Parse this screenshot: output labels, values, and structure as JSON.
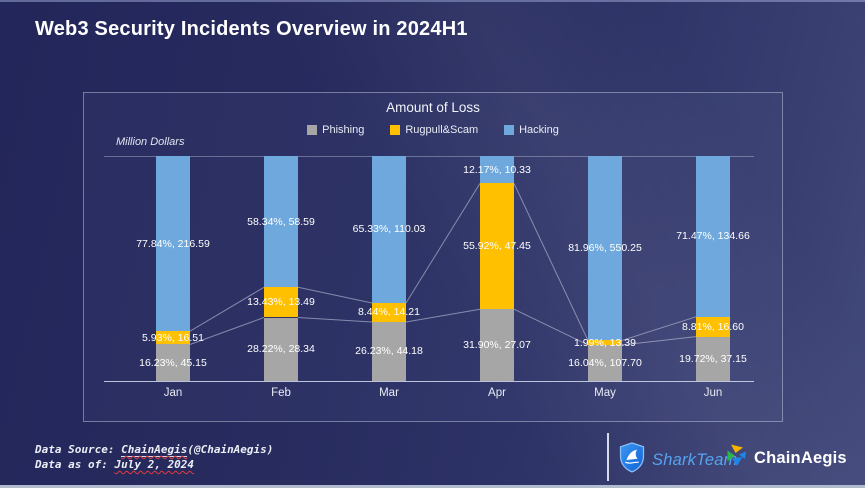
{
  "header": {
    "title": "Web3 Security Incidents Overview in 2024H1"
  },
  "chart_data": {
    "type": "bar",
    "subtype": "100%-stacked-column-with-series-lines",
    "title": "Amount of Loss",
    "ylabel": "Million Dollars",
    "categories": [
      "Jan",
      "Feb",
      "Mar",
      "Apr",
      "May",
      "Jun"
    ],
    "legend_position": "top",
    "grid": "top-line-only",
    "series": [
      {
        "name": "Phishing",
        "color": "#a6a6a6",
        "pct": [
          16.23,
          28.22,
          26.23,
          31.9,
          16.04,
          19.72
        ],
        "values": [
          45.15,
          28.34,
          44.18,
          27.07,
          107.7,
          37.15
        ]
      },
      {
        "name": "Rugpull&Scam",
        "color": "#ffc000",
        "pct": [
          5.93,
          13.43,
          8.44,
          55.92,
          1.99,
          8.81
        ],
        "values": [
          16.51,
          13.49,
          14.21,
          47.45,
          13.39,
          16.6
        ]
      },
      {
        "name": "Hacking",
        "color": "#6fa8dc",
        "pct": [
          77.84,
          58.34,
          65.33,
          12.17,
          81.96,
          71.47
        ],
        "values": [
          216.59,
          58.59,
          110.03,
          10.33,
          550.25,
          134.66
        ]
      }
    ],
    "label_format": "{pct}%, {value}"
  },
  "footer": {
    "source_prefix": "Data Source: ",
    "source_link": "ChainAegis",
    "source_suffix": "(@ChainAegis)",
    "asof_prefix": "Data as of: ",
    "asof_date": "July 2, 2024"
  },
  "logos": {
    "sharkteam_label": "SharkTeam",
    "chainaegis_label": "ChainAegis"
  },
  "colors": {
    "background_navy": "#272b5e",
    "phishing_gray": "#a6a6a6",
    "rugpull_yellow": "#ffc000",
    "hacking_blue": "#6fa8dc",
    "sharkteam_blue": "#55a4f1",
    "connector_line": "rgba(205,212,230,0.55)",
    "bottom_strip": "#b2bacd"
  }
}
